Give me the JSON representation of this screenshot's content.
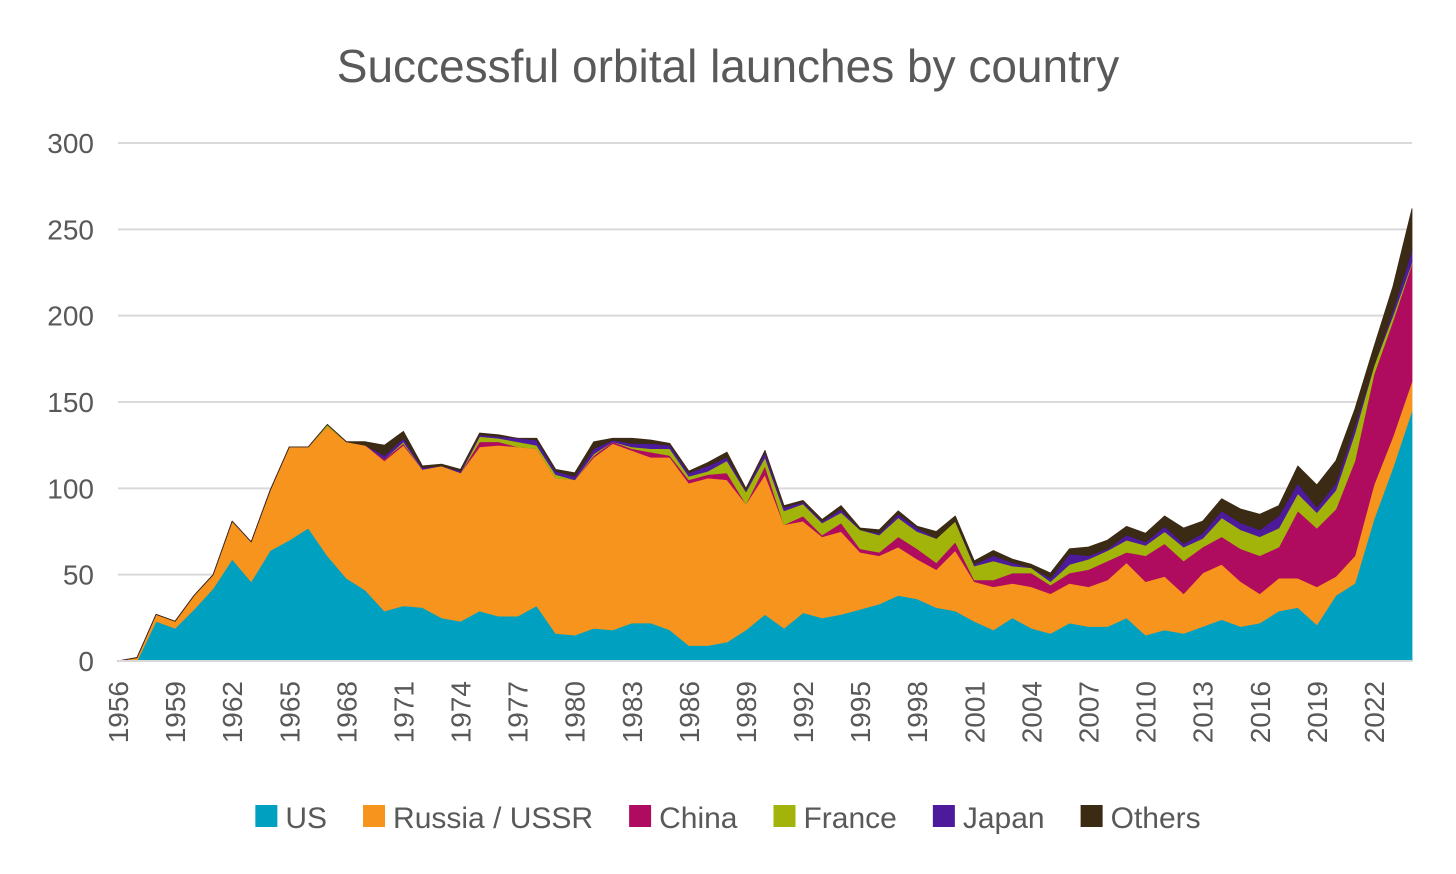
{
  "chart_data": {
    "type": "area",
    "stacked": true,
    "title": "Successful orbital launches by country",
    "xlabel": "",
    "ylabel": "",
    "ylim": [
      0,
      300
    ],
    "yticks": [
      0,
      50,
      100,
      150,
      200,
      250,
      300
    ],
    "xlim": [
      1956,
      2024
    ],
    "xticks": [
      "1956",
      "1959",
      "1962",
      "1965",
      "1968",
      "1971",
      "1974",
      "1977",
      "1980",
      "1983",
      "1986",
      "1989",
      "1992",
      "1995",
      "1998",
      "2001",
      "2004",
      "2007",
      "2010",
      "2013",
      "2016",
      "2019",
      "2022"
    ],
    "grid": true,
    "legend": "bottom",
    "x": [
      1956,
      1957,
      1958,
      1959,
      1960,
      1961,
      1962,
      1963,
      1964,
      1965,
      1966,
      1967,
      1968,
      1969,
      1970,
      1971,
      1972,
      1973,
      1974,
      1975,
      1976,
      1977,
      1978,
      1979,
      1980,
      1981,
      1982,
      1983,
      1984,
      1985,
      1986,
      1987,
      1988,
      1989,
      1990,
      1991,
      1992,
      1993,
      1994,
      1995,
      1996,
      1997,
      1998,
      1999,
      2000,
      2001,
      2002,
      2003,
      2004,
      2005,
      2006,
      2007,
      2008,
      2009,
      2010,
      2011,
      2012,
      2013,
      2014,
      2015,
      2016,
      2017,
      2018,
      2019,
      2020,
      2021,
      2022,
      2023,
      2024
    ],
    "series": [
      {
        "name": "US",
        "color": "#00a0c0",
        "values": [
          0,
          0,
          23,
          19,
          30,
          42,
          59,
          46,
          64,
          70,
          77,
          61,
          48,
          41,
          29,
          32,
          31,
          25,
          23,
          29,
          26,
          26,
          32,
          16,
          15,
          19,
          18,
          22,
          22,
          18,
          9,
          9,
          11,
          18,
          27,
          19,
          28,
          25,
          27,
          30,
          33,
          38,
          36,
          31,
          29,
          23,
          18,
          25,
          19,
          16,
          22,
          20,
          20,
          25,
          15,
          18,
          16,
          20,
          24,
          20,
          22,
          29,
          31,
          21,
          38,
          45,
          82,
          112,
          145
        ]
      },
      {
        "name": "Russia / USSR",
        "color": "#f7941d",
        "values": [
          0,
          2,
          4,
          4,
          8,
          8,
          22,
          23,
          35,
          54,
          47,
          75,
          79,
          84,
          87,
          93,
          80,
          88,
          86,
          95,
          99,
          98,
          91,
          90,
          90,
          99,
          108,
          100,
          96,
          100,
          94,
          97,
          94,
          73,
          81,
          60,
          53,
          47,
          48,
          33,
          28,
          28,
          23,
          22,
          35,
          23,
          25,
          20,
          24,
          23,
          23,
          23,
          27,
          32,
          31,
          31,
          23,
          31,
          32,
          26,
          17,
          19,
          17,
          22,
          11,
          16,
          20,
          18,
          17
        ]
      },
      {
        "name": "China",
        "color": "#b00c5f",
        "values": [
          0,
          0,
          0,
          0,
          0,
          0,
          0,
          0,
          0,
          0,
          0,
          0,
          0,
          0,
          1,
          1,
          0,
          0,
          0,
          3,
          2,
          0,
          0,
          0,
          0,
          1,
          1,
          1,
          3,
          1,
          2,
          2,
          4,
          0,
          5,
          0,
          3,
          1,
          5,
          2,
          2,
          6,
          6,
          4,
          5,
          1,
          4,
          6,
          8,
          5,
          6,
          10,
          11,
          6,
          15,
          19,
          19,
          15,
          16,
          19,
          22,
          18,
          39,
          34,
          39,
          55,
          64,
          67,
          68
        ]
      },
      {
        "name": "France",
        "color": "#a2b409",
        "values": [
          0,
          0,
          0,
          0,
          0,
          0,
          0,
          0,
          0,
          0,
          0,
          1,
          0,
          0,
          0,
          1,
          0,
          0,
          0,
          3,
          2,
          3,
          2,
          2,
          0,
          1,
          0,
          1,
          2,
          4,
          2,
          2,
          7,
          7,
          5,
          8,
          7,
          7,
          6,
          11,
          10,
          11,
          10,
          14,
          12,
          8,
          11,
          4,
          3,
          2,
          5,
          6,
          6,
          7,
          6,
          7,
          8,
          5,
          11,
          11,
          11,
          11,
          10,
          9,
          11,
          16,
          5,
          3,
          1
        ]
      },
      {
        "name": "Japan",
        "color": "#4d1a9c",
        "values": [
          0,
          0,
          0,
          0,
          0,
          0,
          0,
          0,
          0,
          0,
          0,
          0,
          0,
          0,
          2,
          2,
          1,
          0,
          1,
          1,
          1,
          2,
          3,
          2,
          2,
          3,
          1,
          2,
          3,
          2,
          2,
          3,
          2,
          1,
          3,
          2,
          1,
          1,
          2,
          0,
          1,
          2,
          2,
          0,
          0,
          1,
          3,
          2,
          0,
          2,
          6,
          2,
          1,
          3,
          2,
          3,
          2,
          3,
          4,
          4,
          4,
          7,
          6,
          3,
          4,
          4,
          0,
          3,
          7
        ]
      },
      {
        "name": "Others",
        "color": "#3b2a14",
        "values": [
          0,
          0,
          0,
          0,
          0,
          0,
          0,
          0,
          0,
          0,
          0,
          0,
          0,
          2,
          6,
          4,
          1,
          1,
          1,
          1,
          1,
          0,
          1,
          1,
          2,
          4,
          1,
          3,
          2,
          1,
          1,
          2,
          3,
          1,
          1,
          1,
          1,
          1,
          2,
          1,
          2,
          2,
          1,
          4,
          3,
          2,
          3,
          2,
          2,
          3,
          3,
          5,
          5,
          5,
          5,
          6,
          9,
          7,
          7,
          8,
          9,
          6,
          10,
          13,
          13,
          10,
          11,
          14,
          24
        ]
      }
    ]
  }
}
